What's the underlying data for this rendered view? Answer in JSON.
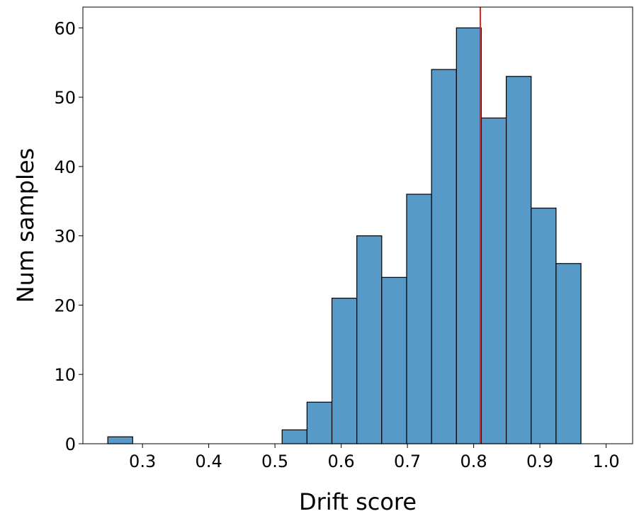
{
  "chart_data": {
    "type": "bar",
    "subtype": "histogram",
    "xlabel": "Drift score",
    "ylabel": "Num samples",
    "xlim": [
      0.21,
      1.04
    ],
    "ylim": [
      0,
      63
    ],
    "x_ticks": [
      0.3,
      0.4,
      0.5,
      0.6,
      0.7,
      0.8,
      0.9,
      1.0
    ],
    "x_tick_labels": [
      "0.3",
      "0.4",
      "0.5",
      "0.6",
      "0.7",
      "0.8",
      "0.9",
      "1.0"
    ],
    "y_ticks": [
      0,
      10,
      20,
      30,
      40,
      50,
      60
    ],
    "y_tick_labels": [
      "0",
      "10",
      "20",
      "30",
      "40",
      "50",
      "60"
    ],
    "bin_start": 0.2476,
    "bin_width": 0.0376,
    "counts": [
      1,
      0,
      0,
      0,
      0,
      0,
      0,
      2,
      6,
      21,
      30,
      24,
      36,
      54,
      60,
      47,
      53,
      34,
      26
    ],
    "vline_x": 0.81,
    "colors": {
      "bar_fill": "#5799c7",
      "bar_edge": "#000000",
      "vline": "#e3231f"
    },
    "grid": false
  }
}
